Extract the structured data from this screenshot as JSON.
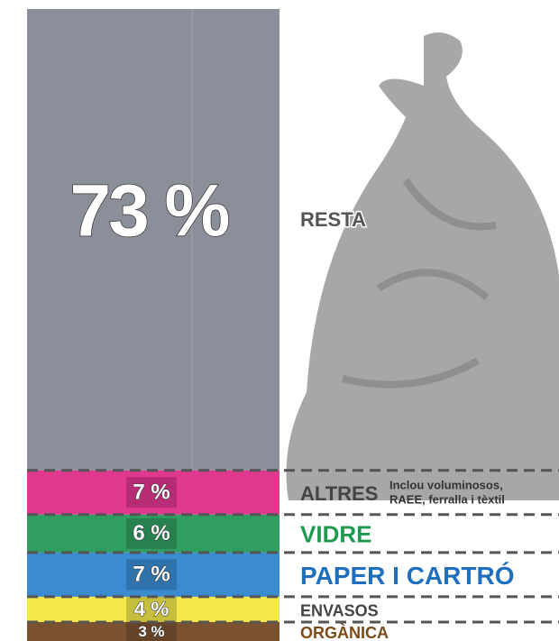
{
  "chart_data": {
    "type": "stacked-column",
    "series": [
      {
        "name": "RESTA",
        "color": "#8b8f99",
        "label_color": "#555555",
        "values": [
          73
        ],
        "value_labels": [
          "73 %"
        ]
      },
      {
        "name": "ALTRES",
        "color": "#e0388f",
        "label_color": "#444444",
        "values": [
          7
        ],
        "value_labels": [
          "7 %"
        ],
        "note": [
          "Inclou voluminosos,",
          "RAEE, ferralla i tèxtil"
        ]
      },
      {
        "name": "VIDRE",
        "color": "#2f9e60",
        "label_color": "#1e9a4f",
        "values": [
          6
        ],
        "value_labels": [
          "6 %"
        ]
      },
      {
        "name": "PAPER I CARTRÓ",
        "color": "#3b8bd1",
        "label_color": "#1f6fbf",
        "values": [
          7
        ],
        "value_labels": [
          "7 %"
        ]
      },
      {
        "name": "ENVASOS",
        "color": "#f2e84b",
        "label_color": "#444444",
        "values": [
          4
        ],
        "value_labels": [
          "4 %"
        ]
      },
      {
        "name": "ORGÀNICA",
        "color": "#7a5230",
        "label_color": "#7a4a18",
        "values": [
          3
        ],
        "value_labels": [
          "3 %"
        ]
      }
    ]
  }
}
